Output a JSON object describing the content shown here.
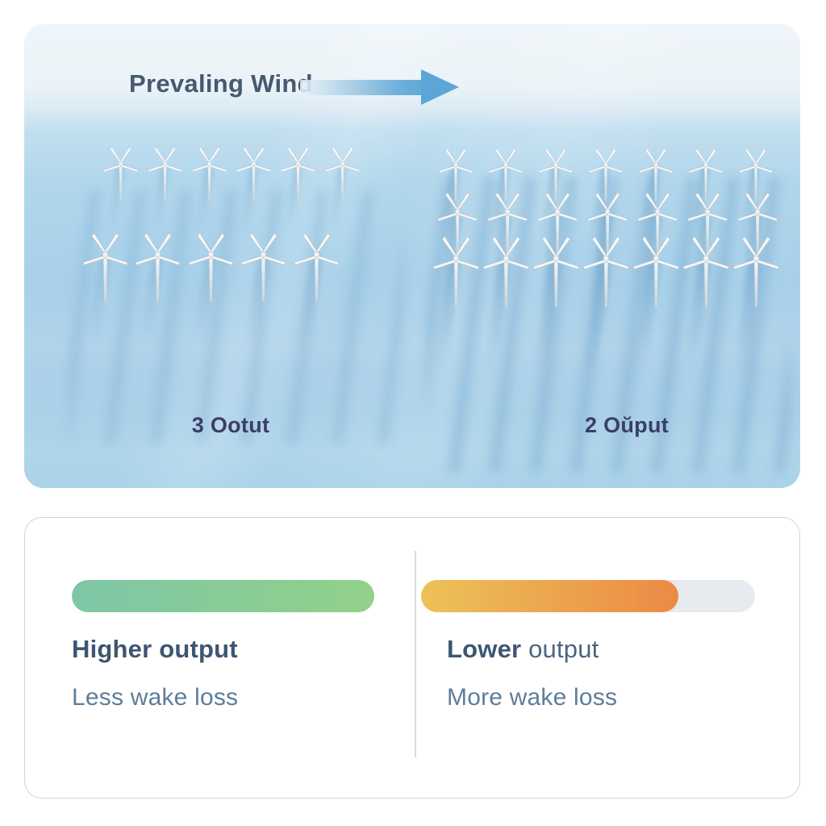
{
  "scene": {
    "wind_label": "Prevaling Wind",
    "wind_arrow_color": "#5ba6d6",
    "left_farm": {
      "label": "3 Ootut",
      "rows": [
        6,
        5
      ],
      "turbine_count": 11
    },
    "right_farm": {
      "label": "2 Oŭput",
      "rows": [
        7,
        7,
        7
      ],
      "turbine_count": 21
    }
  },
  "comparison": {
    "higher": {
      "title": "Higher output",
      "subtitle": "Less wake loss",
      "fill_percent": 100,
      "bar_start": "#7ec6a7",
      "bar_end": "#92d189"
    },
    "lower": {
      "title_bold": "Lower",
      "title_rest": " output",
      "subtitle": "More wake loss",
      "fill_percent": 77,
      "bar_start": "#ecc258",
      "bar_end": "#ec8a45"
    },
    "track_color": "#e7eaee",
    "divider_color": "#d6dce3",
    "title_color": "#3d5671",
    "subtitle_color": "#5e7d9b"
  }
}
